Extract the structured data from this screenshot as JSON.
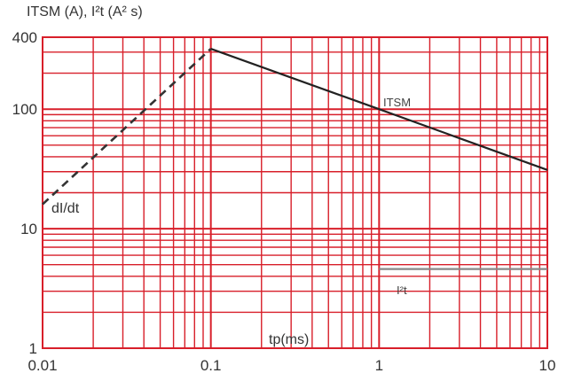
{
  "chart_data": {
    "type": "line",
    "title": "",
    "ylabel": "ITSM (A), I²t (A² s)",
    "xlabel": "tp(ms)",
    "x_scale": "log",
    "y_scale": "log",
    "xlim": [
      0.01,
      10
    ],
    "ylim": [
      1,
      400
    ],
    "x_ticks": [
      "0.01",
      "0.1",
      "1",
      "10"
    ],
    "y_ticks": [
      "1",
      "10",
      "100",
      "400"
    ],
    "grid": true,
    "grid_color": "#d81f2a",
    "series": [
      {
        "name": "ITSM",
        "style": "solid",
        "color": "#222222",
        "x": [
          0.1,
          1,
          10
        ],
        "y": [
          320,
          100,
          31
        ]
      },
      {
        "name": "dI/dt",
        "style": "dashed",
        "color": "#333333",
        "x": [
          0.01,
          0.1
        ],
        "y": [
          16,
          320
        ]
      },
      {
        "name": "I²t",
        "style": "solid",
        "color": "#888888",
        "x": [
          1,
          10
        ],
        "y": [
          4.6,
          4.6
        ]
      }
    ]
  }
}
